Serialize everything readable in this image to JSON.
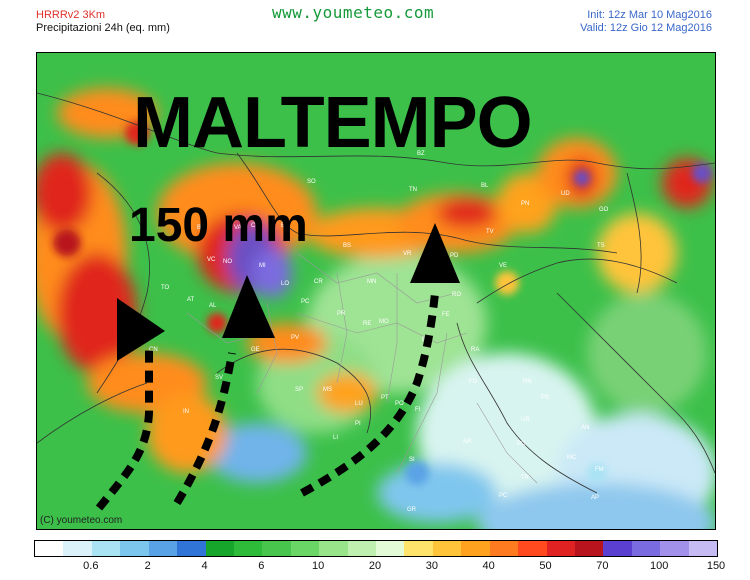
{
  "header": {
    "model": "HRRRv2 3Km",
    "field": "Precipitazioni 24h (eq. mm)",
    "site": "www.youmeteo.com",
    "init": "Init: 12z Mar 10 Mag2016",
    "valid": "Valid: 12z Gio 12 Mag2016"
  },
  "overlay": {
    "headline": "MALTEMPO",
    "amount": "150 mm"
  },
  "map": {
    "copyright": "(C) youmeteo.com",
    "cities": [
      "VR",
      "BZ",
      "TN",
      "BL",
      "UD",
      "PN",
      "GO",
      "TS",
      "TV",
      "VE",
      "VI",
      "PD",
      "RO",
      "FE",
      "BO",
      "MO",
      "RE",
      "PR",
      "PC",
      "LO",
      "CR",
      "MN",
      "BS",
      "BG",
      "MI",
      "NO",
      "VA",
      "CO",
      "SO",
      "LC",
      "AT",
      "TO",
      "CN",
      "SV",
      "GE",
      "SP",
      "MS",
      "LU",
      "PT",
      "PO",
      "FI",
      "PI",
      "LI",
      "SI",
      "GR",
      "AR",
      "PG",
      "TR",
      "RA",
      "FO",
      "RN",
      "PS",
      "AN",
      "UR",
      "MC",
      "FM",
      "AP",
      "AL",
      "PV",
      "VC",
      "BI"
    ],
    "colors": {
      "green": "#2eb84a",
      "orange": "#ff8c1a",
      "red": "#e0251f",
      "violet": "#6a4fc3",
      "arrow": "#000000"
    }
  },
  "legend": {
    "colors": [
      "#ffffff",
      "#dbf2fb",
      "#a9e3f4",
      "#7cc6ee",
      "#59a2e6",
      "#2f74d6",
      "#16a62b",
      "#2fbb3a",
      "#47c54c",
      "#6ad666",
      "#97e48a",
      "#bff0b0",
      "#e4fbd8",
      "#ffe36b",
      "#ffc43a",
      "#ffa21f",
      "#ff7b1f",
      "#ff4a1f",
      "#e02222",
      "#b8141e",
      "#5a3fd0",
      "#7b6be0",
      "#a191ea",
      "#c7bbf3"
    ],
    "ticks": [
      "0.6",
      "2",
      "4",
      "6",
      "10",
      "20",
      "30",
      "40",
      "50",
      "70",
      "100",
      "150"
    ]
  }
}
